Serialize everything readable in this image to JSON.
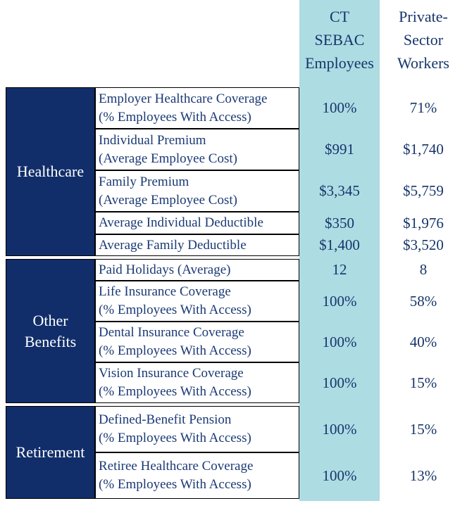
{
  "header": {
    "col1": {
      "name": "CT SEBAC Employees",
      "lines": [
        "CT",
        "SEBAC",
        "Employees"
      ]
    },
    "col2": {
      "name": "Private-Sector Workers",
      "lines": [
        "Private-",
        "Sector",
        "Workers"
      ]
    }
  },
  "colors": {
    "category_navy": "#112e6a",
    "text_navy": "#1b3a75",
    "value_navy": "#17356b",
    "highlight_blue": "#addce3",
    "border_black": "#000000",
    "category_text_white": "#ffffff"
  },
  "sections": [
    {
      "category": "Healthcare",
      "rows": [
        {
          "label": "Employer Healthcare Coverage",
          "sublabel": "(% Employees With Access)",
          "ct": "100%",
          "private": "71%"
        },
        {
          "label": "Individual Premium",
          "sublabel": "(Average Employee Cost)",
          "ct": "$991",
          "private": "$1,740"
        },
        {
          "label": "Family Premium",
          "sublabel": "(Average Employee Cost)",
          "ct": "$3,345",
          "private": "$5,759"
        },
        {
          "label": "Average Individual Deductible",
          "ct": "$350",
          "private": "$1,976"
        },
        {
          "label": "Average Family Deductible",
          "ct": "$1,400",
          "private": "$3,520"
        }
      ]
    },
    {
      "category": "Other Benefits",
      "rows": [
        {
          "label": "Paid Holidays (Average)",
          "ct": "12",
          "private": "8"
        },
        {
          "label": "Life Insurance Coverage",
          "sublabel": "(% Employees With Access)",
          "ct": "100%",
          "private": "58%"
        },
        {
          "label": "Dental Insurance Coverage",
          "sublabel": "(% Employees With Access)",
          "ct": "100%",
          "private": "40%"
        },
        {
          "label": "Vision Insurance Coverage",
          "sublabel": "(% Employees With Access)",
          "ct": "100%",
          "private": "15%"
        }
      ]
    },
    {
      "category": "Retirement",
      "rows": [
        {
          "label": "Defined-Benefit Pension",
          "sublabel": "(% Employees With Access)",
          "ct": "100%",
          "private": "15%"
        },
        {
          "label": "Retiree Healthcare Coverage",
          "sublabel": "(% Employees With Access)",
          "ct": "100%",
          "private": "13%"
        }
      ]
    }
  ],
  "chart_data": {
    "type": "table",
    "categories": [
      "Employer Healthcare Coverage (% Employees With Access)",
      "Individual Premium (Average Employee Cost)",
      "Family Premium (Average Employee Cost)",
      "Average Individual Deductible",
      "Average Family Deductible",
      "Paid Holidays (Average)",
      "Life Insurance Coverage (% Employees With Access)",
      "Dental Insurance Coverage (% Employees With Access)",
      "Vision Insurance Coverage (% Employees With Access)",
      "Defined-Benefit Pension (% Employees With Access)",
      "Retiree Healthcare Coverage (% Employees With Access)"
    ],
    "row_groups": [
      "Healthcare",
      "Healthcare",
      "Healthcare",
      "Healthcare",
      "Healthcare",
      "Other Benefits",
      "Other Benefits",
      "Other Benefits",
      "Other Benefits",
      "Retirement",
      "Retirement"
    ],
    "series": [
      {
        "name": "CT SEBAC Employees",
        "values": [
          "100%",
          "$991",
          "$3,345",
          "$350",
          "$1,400",
          "12",
          "100%",
          "100%",
          "100%",
          "100%",
          "100%"
        ]
      },
      {
        "name": "Private-Sector Workers",
        "values": [
          "71%",
          "$1,740",
          "$5,759",
          "$1,976",
          "$3,520",
          "8",
          "58%",
          "40%",
          "15%",
          "15%",
          "13%"
        ]
      }
    ],
    "layout_hints": {
      "highlighted_column": "CT SEBAC Employees",
      "highlight_color": "#addce3",
      "grid": "black cell borders on label columns only"
    }
  }
}
